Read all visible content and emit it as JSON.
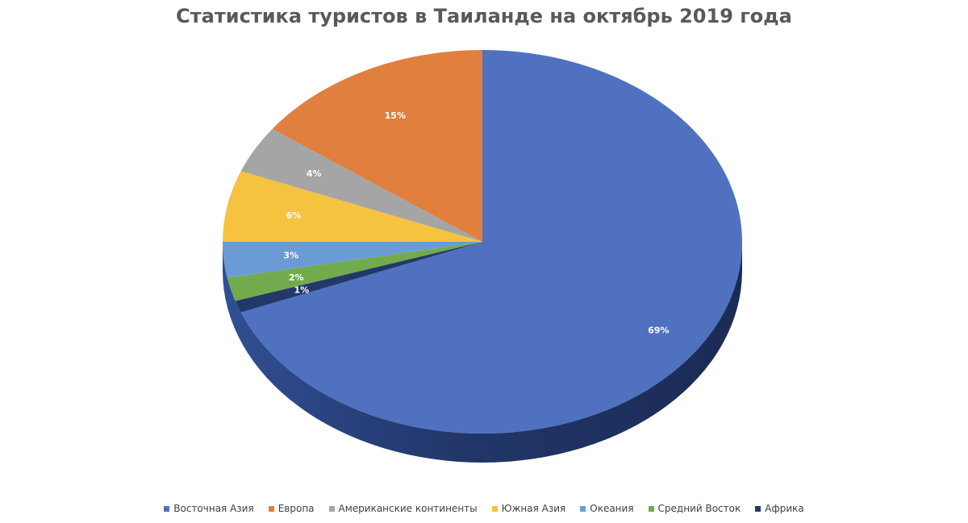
{
  "chart_data": {
    "type": "pie",
    "title": "Статистика туристов в Таиланде на октябрь 2019 года",
    "legend_position": "bottom",
    "slices": [
      {
        "name": "Восточная Азия",
        "value": 69,
        "label": "69%",
        "color": "#4f71c0"
      },
      {
        "name": "Европа",
        "value": 15,
        "label": "15%",
        "color": "#e07f3e"
      },
      {
        "name": "Американские континенты",
        "value": 4,
        "label": "4%",
        "color": "#a5a5a5"
      },
      {
        "name": "Южная Азия",
        "value": 6,
        "label": "6%",
        "color": "#f6c340"
      },
      {
        "name": "Океания",
        "value": 3,
        "label": "3%",
        "color": "#6b9bd7"
      },
      {
        "name": "Средний Восток",
        "value": 2,
        "label": "2%",
        "color": "#72ab4d"
      },
      {
        "name": "Африка",
        "value": 1,
        "label": "1%",
        "color": "#23386a"
      }
    ]
  }
}
